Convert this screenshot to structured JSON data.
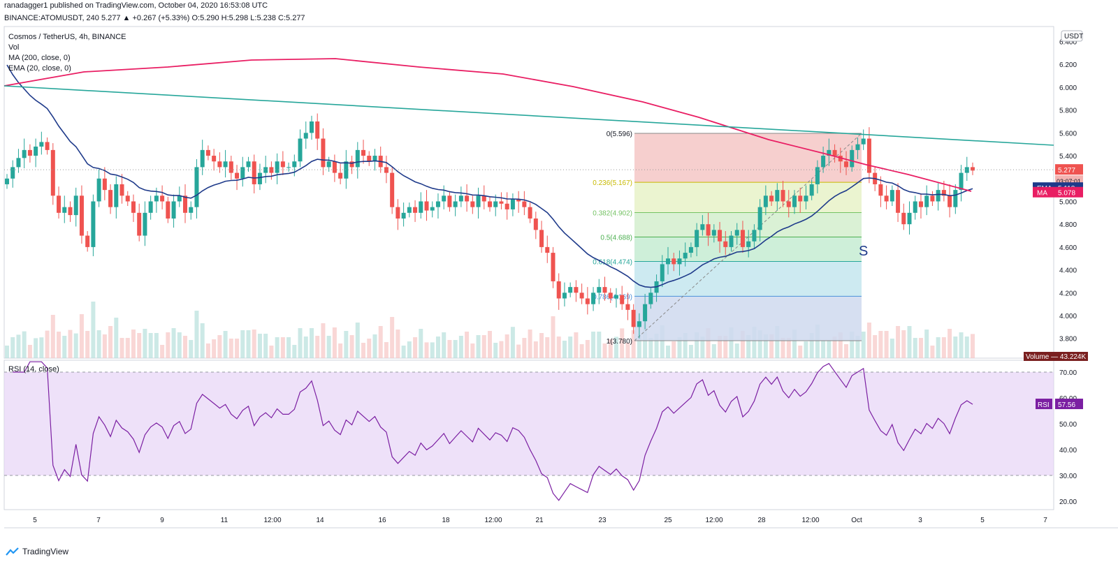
{
  "header": {
    "line1": "ranadagger1 published on TradingView.com, October 04, 2020 16:53:08 UTC",
    "line2": "BINANCE:ATOMUSDT, 240  5.277  ▲ +0.267 (+5.33%) O:5.290 H:5.298 L:5.238 C:5.277"
  },
  "legend": {
    "symbol": "Cosmos / TetherUS, 4h, BINANCE",
    "vol": "Vol",
    "ma": "MA (200, close, 0)",
    "ema": "EMA (20, close, 0)",
    "rsi": "RSI (14, close)"
  },
  "brand": {
    "name": "TradingView",
    "icon": "tradingview-logo-icon"
  },
  "colors": {
    "up": "#26a69a",
    "down": "#ef5350",
    "ma": "#e91e63",
    "ema": "#1e3a8a",
    "trendline": "#26a69a",
    "rsi": "#7b1fa2",
    "rsi_band": "#e7d4f7"
  },
  "chart_data": [
    {
      "type": "candlestick",
      "title": "Cosmos / TetherUS, 4h, BINANCE",
      "currency": "USDT",
      "ylim": [
        3.7,
        6.3
      ],
      "y_ticks": [
        "3.800",
        "4.000",
        "4.200",
        "4.400",
        "4.600",
        "4.800",
        "5.000",
        "5.200",
        "5.400",
        "5.600",
        "5.800",
        "6.000",
        "6.200",
        "6.400"
      ],
      "x_ticks": [
        "5",
        "7",
        "9",
        "11",
        "12:00",
        "14",
        "16",
        "18",
        "12:00",
        "21",
        "23",
        "25",
        "12:00",
        "28",
        "12:00",
        "Oct",
        "3",
        "5",
        "7"
      ],
      "last_price": {
        "value": "5.277",
        "countdown": "03:07:01"
      },
      "ema": {
        "label": "EMA",
        "value": "5.118"
      },
      "ma": {
        "label": "MA",
        "value": "5.078"
      },
      "volume": {
        "label": "Volume",
        "value": "43.224K"
      },
      "annotation": "S",
      "fibonacci": [
        {
          "label": "0(5.596)",
          "value": 5.596
        },
        {
          "label": "0.236(5.167)",
          "value": 5.167
        },
        {
          "label": "0.382(4.902)",
          "value": 4.902
        },
        {
          "label": "0.5(4.688)",
          "value": 4.688
        },
        {
          "label": "0.618(4.474)",
          "value": 4.474
        },
        {
          "label": "0.786(4.169)",
          "value": 4.169
        },
        {
          "label": "1(3.780)",
          "value": 3.78
        }
      ],
      "close": [
        5.2,
        5.3,
        5.38,
        5.45,
        5.4,
        5.48,
        5.52,
        5.45,
        5.05,
        4.9,
        4.95,
        4.88,
        5.05,
        4.7,
        4.6,
        5.0,
        5.2,
        5.1,
        4.95,
        5.15,
        5.05,
        5.0,
        4.9,
        4.7,
        4.9,
        5.0,
        5.05,
        5.0,
        4.85,
        5.0,
        5.05,
        4.9,
        4.95,
        5.3,
        5.45,
        5.4,
        5.35,
        5.3,
        5.35,
        5.25,
        5.2,
        5.3,
        5.35,
        5.15,
        5.25,
        5.3,
        5.25,
        5.35,
        5.3,
        5.3,
        5.35,
        5.55,
        5.6,
        5.7,
        5.55,
        5.3,
        5.35,
        5.25,
        5.2,
        5.35,
        5.3,
        5.45,
        5.4,
        5.35,
        5.4,
        5.3,
        5.25,
        4.95,
        4.85,
        4.9,
        4.95,
        4.9,
        5.0,
        4.92,
        4.95,
        5.0,
        5.05,
        4.95,
        5.0,
        5.05,
        5.0,
        4.95,
        5.05,
        5.0,
        4.95,
        5.0,
        4.98,
        4.93,
        5.02,
        5.0,
        4.95,
        4.85,
        4.75,
        4.6,
        4.55,
        4.3,
        4.15,
        4.2,
        4.25,
        4.2,
        4.15,
        4.1,
        4.2,
        4.25,
        4.2,
        4.15,
        4.18,
        4.1,
        4.05,
        3.9,
        3.95,
        4.1,
        4.2,
        4.3,
        4.45,
        4.5,
        4.45,
        4.5,
        4.55,
        4.6,
        4.75,
        4.8,
        4.7,
        4.75,
        4.65,
        4.6,
        4.7,
        4.75,
        4.6,
        4.65,
        4.75,
        4.95,
        5.05,
        5.0,
        5.1,
        5.0,
        4.95,
        5.05,
        5.0,
        5.05,
        5.15,
        5.3,
        5.4,
        5.45,
        5.4,
        5.35,
        5.3,
        5.45,
        5.5,
        5.55,
        5.25,
        5.15,
        5.05,
        5.0,
        5.1,
        4.9,
        4.8,
        4.9,
        5.0,
        4.95,
        5.05,
        5.0,
        5.1,
        5.05,
        4.95,
        5.1,
        5.25,
        5.3,
        5.27
      ]
    },
    {
      "type": "line",
      "title": "RSI (14, close)",
      "ylim": [
        15,
        75
      ],
      "y_ticks": [
        "20.00",
        "30.00",
        "40.00",
        "50.00",
        "60.00",
        "70.00"
      ],
      "band": [
        30,
        70
      ],
      "last": {
        "label": "RSI",
        "value": "57.56"
      }
    }
  ]
}
